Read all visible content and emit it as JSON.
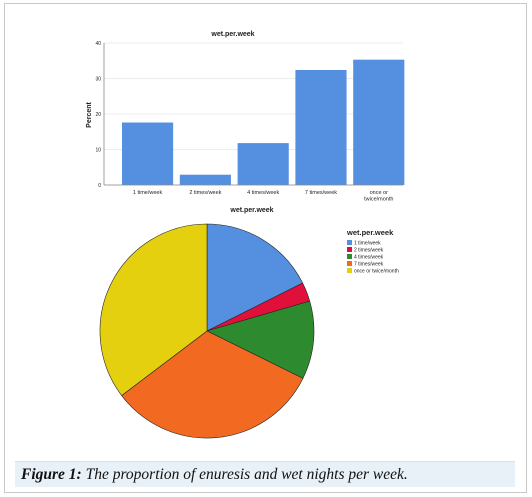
{
  "caption": {
    "label": "Figure 1:",
    "text": "The proportion of enuresis and wet nights per week."
  },
  "colors": {
    "bar": "#5590e0",
    "slices": [
      "#5590e0",
      "#e0103a",
      "#2d8a2e",
      "#f26a22",
      "#e5d010"
    ],
    "grid": "#d9d9d9",
    "border": "#bbbbbb"
  },
  "chart_data": [
    {
      "type": "bar",
      "title": "wet.per.week",
      "xlabel": "",
      "ylabel": "Percent",
      "categories": [
        "1 time/week",
        "2 times/week",
        "4 times/week",
        "7 times/week",
        "once or twice/month"
      ],
      "values": [
        17.6,
        2.9,
        11.8,
        32.4,
        35.3
      ],
      "ylim": [
        0,
        40
      ],
      "yticks": [
        "0",
        "10",
        "20",
        "30",
        "40"
      ],
      "grid": true
    },
    {
      "type": "pie",
      "title": "wet.per.week",
      "legend_title": "wet.per.week",
      "legend_position": "top-right",
      "categories": [
        "1 time/week",
        "2 times/week",
        "4 times/week",
        "7 times/week",
        "once or twice/month"
      ],
      "values": [
        17.6,
        2.9,
        11.8,
        32.4,
        35.3
      ]
    }
  ]
}
